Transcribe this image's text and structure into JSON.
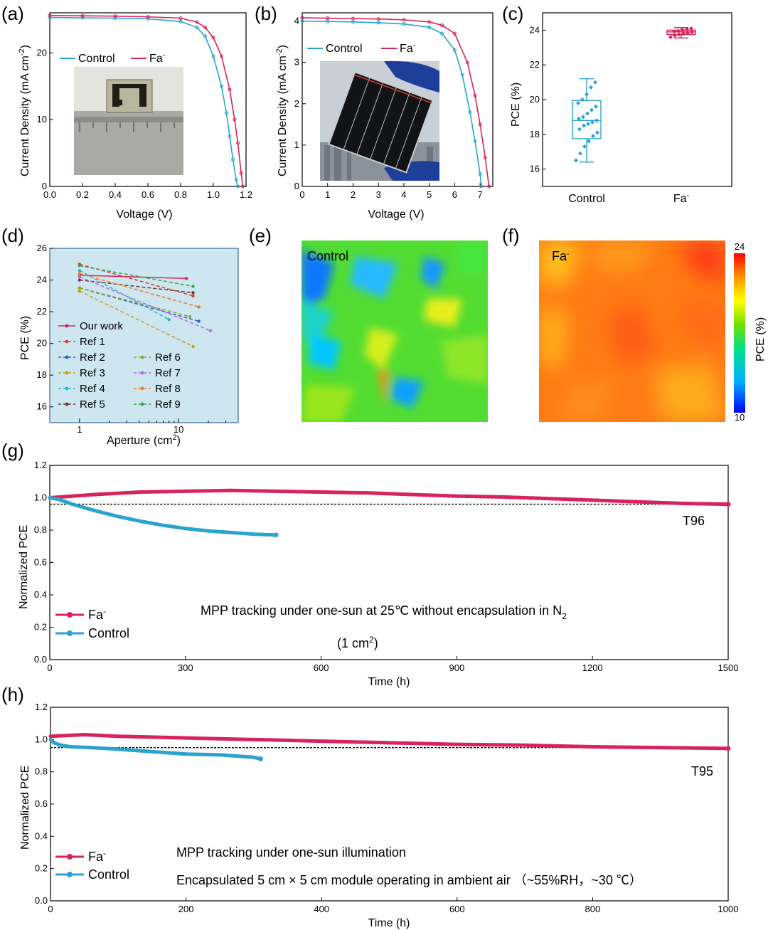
{
  "colors": {
    "control": "#2aa3cf",
    "fa": "#d8245a",
    "ref_bg": "#cde6f0",
    "ref_border": "#3b6c8c"
  },
  "chart_data": [
    {
      "panel": "(a)",
      "type": "line",
      "xlabel": "Voltage (V)",
      "ylabel": "Current Density (mA cm",
      "ylabel_unit_sup": "-2",
      "ylabel_close": ")",
      "xlim": [
        0,
        1.2
      ],
      "ylim": [
        0,
        26
      ],
      "xticks": [
        "0.0",
        "0.2",
        "0.4",
        "0.6",
        "0.8",
        "1.0",
        "1.2"
      ],
      "yticks": [
        "0",
        "10",
        "20"
      ],
      "series": [
        {
          "name": "Control",
          "x": [
            0,
            0.2,
            0.4,
            0.6,
            0.8,
            0.9,
            0.95,
            1.0,
            1.05,
            1.08,
            1.1,
            1.12,
            1.14,
            1.15
          ],
          "y": [
            25.3,
            25.25,
            25.2,
            25.1,
            24.7,
            23.8,
            22.5,
            19.5,
            15,
            11,
            7.5,
            4,
            1,
            0
          ]
        },
        {
          "name": "Fa",
          "x": [
            0,
            0.2,
            0.4,
            0.6,
            0.8,
            0.9,
            0.95,
            1.0,
            1.05,
            1.1,
            1.13,
            1.15,
            1.17,
            1.18
          ],
          "y": [
            25.6,
            25.55,
            25.5,
            25.4,
            25.2,
            24.6,
            23.8,
            22.3,
            19.5,
            14.5,
            10,
            6.5,
            2,
            0
          ]
        }
      ],
      "legend": [
        "Control",
        "Fa",
        "-"
      ]
    },
    {
      "panel": "(b)",
      "type": "line",
      "xlabel": "Voltage (V)",
      "ylabel": "Current Density (mA cm",
      "ylabel_unit_sup": "-2",
      "ylabel_close": ")",
      "xlim": [
        0,
        7.5
      ],
      "ylim": [
        0,
        4.2
      ],
      "xticks": [
        "0",
        "1",
        "2",
        "3",
        "4",
        "5",
        "6",
        "7"
      ],
      "yticks": [
        "0",
        "1",
        "2",
        "3",
        "4"
      ],
      "series": [
        {
          "name": "Control",
          "x": [
            0,
            1,
            2,
            3,
            4,
            5,
            5.5,
            6,
            6.3,
            6.6,
            6.8,
            7.0,
            7.05
          ],
          "y": [
            4.0,
            3.99,
            3.98,
            3.96,
            3.93,
            3.85,
            3.7,
            3.3,
            2.7,
            1.8,
            1.1,
            0.3,
            0
          ]
        },
        {
          "name": "Fa",
          "x": [
            0,
            1,
            2,
            3,
            4,
            5,
            5.5,
            6,
            6.5,
            6.8,
            7.0,
            7.2,
            7.35
          ],
          "y": [
            4.08,
            4.07,
            4.06,
            4.05,
            4.03,
            3.98,
            3.9,
            3.7,
            3.0,
            2.2,
            1.5,
            0.7,
            0
          ]
        }
      ],
      "legend": [
        "Control",
        "Fa",
        "-"
      ]
    },
    {
      "panel": "(c)",
      "type": "box",
      "ylabel": "PCE (%)",
      "ylim": [
        15,
        25
      ],
      "yticks": [
        "16",
        "18",
        "20",
        "22",
        "24"
      ],
      "categories": [
        "Control",
        "Fa",
        "-"
      ],
      "boxes": [
        {
          "q1": 17.75,
          "median": 18.8,
          "q3": 19.95,
          "min": 16.4,
          "max": 21.2,
          "points": [
            16.5,
            16.9,
            17.3,
            17.6,
            17.9,
            18.1,
            18.3,
            18.5,
            18.6,
            18.7,
            18.8,
            18.9,
            19.0,
            19.2,
            19.4,
            19.6,
            19.8,
            20.0,
            20.3,
            20.7,
            21.0
          ]
        },
        {
          "q1": 23.75,
          "median": 23.9,
          "q3": 24.0,
          "min": 23.55,
          "max": 24.15,
          "points": [
            23.6,
            23.7,
            23.75,
            23.8,
            23.85,
            23.9,
            23.92,
            23.95,
            24.0,
            24.05,
            24.1
          ]
        }
      ]
    },
    {
      "panel": "(d)",
      "type": "line",
      "xscale": "log",
      "xlabel": "Aperture (cm",
      "xlabel_sup": "2",
      "xlabel_close": ")",
      "ylabel": "PCE (%)",
      "ylim": [
        15,
        26
      ],
      "yticks": [
        "16",
        "18",
        "20",
        "22",
        "24",
        "26"
      ],
      "xticks": [
        "1",
        "10"
      ],
      "series": [
        {
          "name": "Our work",
          "x": [
            1,
            12
          ],
          "y": [
            24.3,
            24.1
          ]
        },
        {
          "name": "Ref 1",
          "x": [
            1,
            14
          ],
          "y": [
            25.0,
            23.0
          ]
        },
        {
          "name": "Ref 2",
          "x": [
            1,
            16
          ],
          "y": [
            23.5,
            21.4
          ]
        },
        {
          "name": "Ref 3",
          "x": [
            1,
            14
          ],
          "y": [
            23.3,
            19.8
          ]
        },
        {
          "name": "Ref 4",
          "x": [
            1,
            8
          ],
          "y": [
            24.6,
            21.5
          ]
        },
        {
          "name": "Ref 5",
          "x": [
            1,
            14
          ],
          "y": [
            24.0,
            23.2
          ]
        },
        {
          "name": "Ref 6",
          "x": [
            1,
            13
          ],
          "y": [
            23.5,
            21.7
          ]
        },
        {
          "name": "Ref 7",
          "x": [
            1,
            21
          ],
          "y": [
            24.2,
            20.8
          ]
        },
        {
          "name": "Ref 8",
          "x": [
            1,
            16
          ],
          "y": [
            24.4,
            22.3
          ]
        },
        {
          "name": "Ref 9",
          "x": [
            1,
            14
          ],
          "y": [
            24.9,
            23.6
          ]
        }
      ]
    },
    {
      "panel": "(e)",
      "type": "heatmap",
      "label": "Control",
      "description_levels": [
        12,
        24
      ]
    },
    {
      "panel": "(f)",
      "type": "heatmap",
      "label": "Fa",
      "label_sup": "-",
      "colorbar": {
        "min": "10",
        "max": "24",
        "label": "PCE (%)"
      }
    },
    {
      "panel": "(g)",
      "type": "line",
      "xlabel": "Time (h)",
      "ylabel": "Normalized PCE",
      "xlim": [
        0,
        1500
      ],
      "ylim": [
        0,
        1.2
      ],
      "xticks": [
        "0",
        "300",
        "600",
        "900",
        "1200",
        "1500"
      ],
      "yticks": [
        "0.0",
        "0.2",
        "0.4",
        "0.6",
        "0.8",
        "1.0",
        "1.2"
      ],
      "threshold": 0.96,
      "threshold_label": "T96",
      "series": [
        {
          "name": "Fa",
          "x": [
            0,
            100,
            200,
            300,
            400,
            500,
            600,
            700,
            800,
            900,
            1000,
            1100,
            1200,
            1300,
            1400,
            1500
          ],
          "y": [
            1.0,
            1.02,
            1.035,
            1.04,
            1.045,
            1.04,
            1.035,
            1.03,
            1.02,
            1.01,
            1.005,
            0.995,
            0.985,
            0.975,
            0.965,
            0.96
          ]
        },
        {
          "name": "Control",
          "x": [
            0,
            20,
            50,
            100,
            150,
            200,
            250,
            300,
            350,
            400,
            450,
            500
          ],
          "y": [
            1.0,
            0.99,
            0.96,
            0.92,
            0.885,
            0.855,
            0.83,
            0.81,
            0.795,
            0.785,
            0.775,
            0.77
          ]
        }
      ],
      "legend": [
        "Fa",
        "-",
        "Control"
      ],
      "annotation": "MPP tracking under one-sun at 25℃ without encapsulation in N",
      "annotation_sub": "2",
      "annotation2": "(1 cm",
      "annotation2_sup": "2",
      "annotation2_close": ")"
    },
    {
      "panel": "(h)",
      "type": "line",
      "xlabel": "Time (h)",
      "ylabel": "Normalized PCE",
      "xlim": [
        0,
        1000
      ],
      "ylim": [
        0,
        1.2
      ],
      "xticks": [
        "0",
        "200",
        "400",
        "600",
        "800",
        "1000"
      ],
      "yticks": [
        "0.0",
        "0.2",
        "0.4",
        "0.6",
        "0.8",
        "1.0",
        "1.2"
      ],
      "threshold": 0.95,
      "threshold_label": "T95",
      "series": [
        {
          "name": "Fa",
          "x": [
            0,
            50,
            100,
            200,
            300,
            400,
            500,
            600,
            700,
            800,
            900,
            1000
          ],
          "y": [
            1.02,
            1.03,
            1.02,
            1.01,
            1.0,
            0.99,
            0.98,
            0.97,
            0.965,
            0.955,
            0.95,
            0.945
          ]
        },
        {
          "name": "Control",
          "x": [
            0,
            5,
            15,
            30,
            60,
            100,
            150,
            200,
            250,
            300,
            310
          ],
          "y": [
            1.0,
            0.98,
            0.965,
            0.955,
            0.95,
            0.94,
            0.925,
            0.91,
            0.905,
            0.89,
            0.88
          ]
        }
      ],
      "legend": [
        "Fa",
        "-",
        "Control"
      ],
      "annotation": "MPP tracking under one-sun illumination",
      "annotation2": "Encapsulated 5 cm × 5 cm module operating in ambient air （~55%RH，~30 ℃）"
    }
  ]
}
